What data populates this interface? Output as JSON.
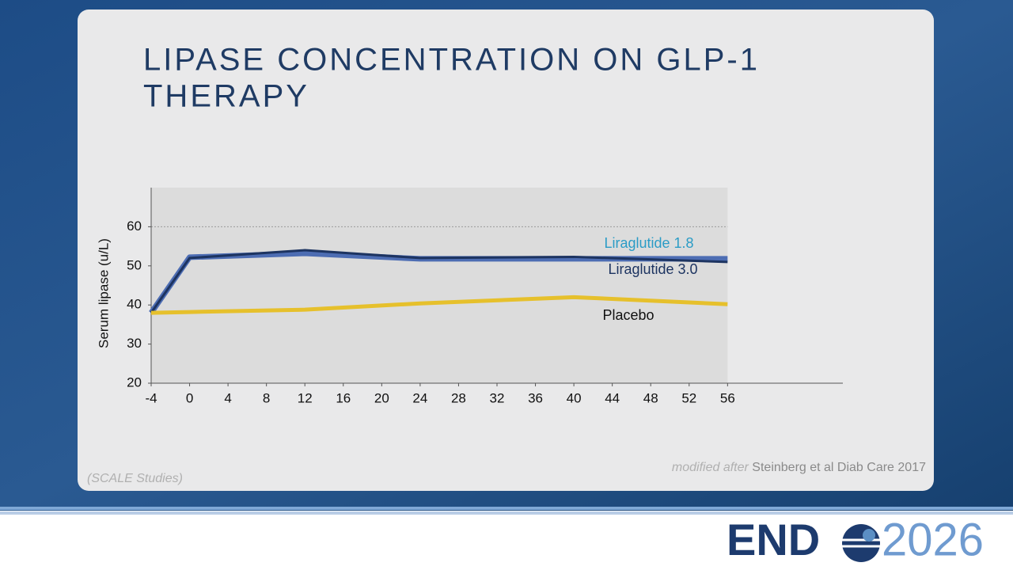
{
  "chart_data": {
    "type": "line",
    "title": "LIPASE CONCENTRATION ON GLP-1 THERAPY",
    "y_label": "Serum lipase (u/L)",
    "x": [
      -4,
      0,
      12,
      24,
      40,
      56
    ],
    "series": [
      {
        "name": "Liraglutide 1.8",
        "color": "#4d6db3",
        "label_color": "#2b9cc6",
        "values": [
          38,
          52.2,
          53.2,
          51.8,
          51.8,
          51.8
        ]
      },
      {
        "name": "Liraglutide 3.0",
        "color": "#1d3461",
        "label_color": "#1d3461",
        "values": [
          38,
          52,
          54,
          52,
          52.3,
          51
        ]
      },
      {
        "name": "Placebo",
        "color": "#e6c02c",
        "label_color": "#111111",
        "values": [
          38,
          38.2,
          38.8,
          40.4,
          42,
          40.2
        ]
      }
    ],
    "xlim": [
      -4,
      68
    ],
    "ylim": [
      20,
      70
    ],
    "xticks": [
      -4,
      0,
      4,
      8,
      12,
      16,
      20,
      24,
      28,
      32,
      36,
      40,
      44,
      48,
      52,
      56
    ],
    "yticks": [
      20,
      30,
      40,
      50,
      60
    ],
    "gridlines": [
      60
    ]
  },
  "footer": {
    "study": "(SCALE Studies)",
    "source_prefix": "modified after",
    "source": "Steinberg et al Diab Care 2017"
  },
  "logo": {
    "left": "END",
    "right": "2026"
  }
}
